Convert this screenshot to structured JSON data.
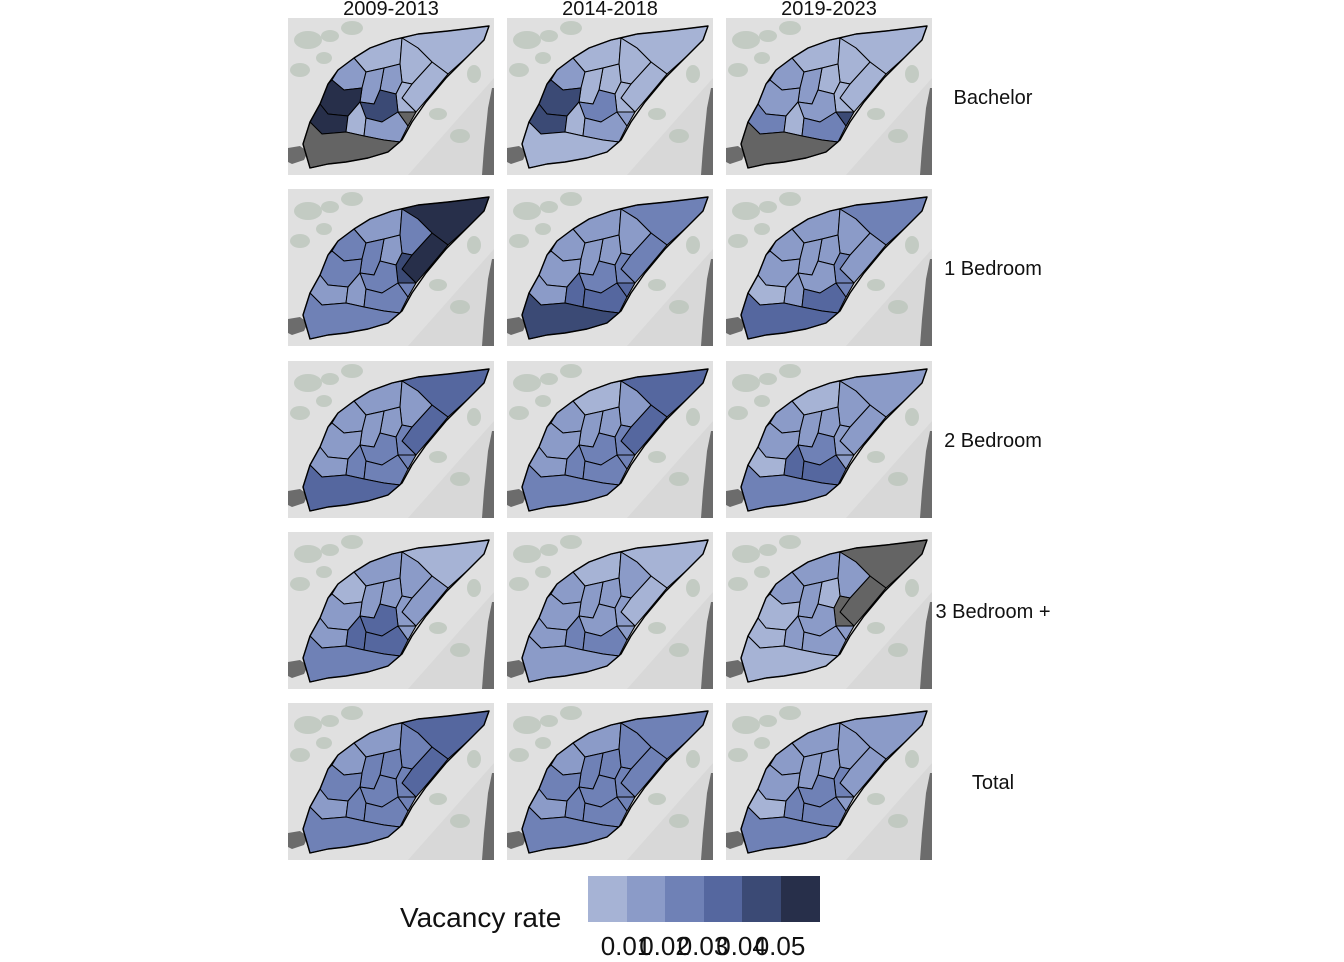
{
  "periods": [
    "2009-2013",
    "2014-2018",
    "2019-2023"
  ],
  "bedroom_types": [
    "Bachelor",
    "1 Bedroom",
    "2 Bedroom",
    "3 Bedroom +",
    "Total"
  ],
  "legend": {
    "title": "Vacancy rate",
    "ticks": [
      "0.01",
      "0.02",
      "0.03",
      "0.04",
      "0.05"
    ],
    "bins": [
      "#a6b3d5",
      "#8b9bc8",
      "#6f81b6",
      "#55679f",
      "#3b4a75",
      "#272f4a"
    ],
    "na_color": "#646464"
  },
  "colors": {
    "land": "#d8d8d8",
    "land_light": "#e6e6e6",
    "water": "#6c6c6c",
    "park": "#bcc5bc",
    "boundary": "#000000"
  },
  "maps": [
    {
      "period": "2009-2013",
      "type": "Bachelor",
      "zones": [
        0,
        0,
        0,
        0,
        1,
        1,
        0,
        1,
        5,
        5,
        4,
        0,
        1,
        6,
        6
      ]
    },
    {
      "period": "2014-2018",
      "type": "Bachelor",
      "zones": [
        0,
        0,
        0,
        0,
        0,
        1,
        0,
        0,
        4,
        4,
        2,
        0,
        1,
        0,
        1
      ]
    },
    {
      "period": "2019-2023",
      "type": "Bachelor",
      "zones": [
        0,
        0,
        0,
        0,
        0,
        1,
        0,
        1,
        1,
        2,
        1,
        0,
        2,
        6,
        4
      ]
    },
    {
      "period": "2009-2013",
      "type": "1 Bedroom",
      "zones": [
        5,
        5,
        1,
        2,
        1,
        2,
        4,
        2,
        2,
        1,
        2,
        1,
        2,
        2,
        2
      ]
    },
    {
      "period": "2014-2018",
      "type": "1 Bedroom",
      "zones": [
        2,
        2,
        1,
        1,
        1,
        1,
        2,
        1,
        1,
        1,
        2,
        3,
        3,
        4,
        3
      ]
    },
    {
      "period": "2019-2023",
      "type": "1 Bedroom",
      "zones": [
        2,
        1,
        1,
        1,
        1,
        1,
        2,
        1,
        1,
        0,
        1,
        1,
        3,
        3,
        2
      ]
    },
    {
      "period": "2009-2013",
      "type": "2 Bedroom",
      "zones": [
        3,
        3,
        1,
        1,
        1,
        1,
        2,
        1,
        1,
        1,
        2,
        2,
        2,
        3,
        2
      ]
    },
    {
      "period": "2014-2018",
      "type": "2 Bedroom",
      "zones": [
        3,
        3,
        0,
        1,
        1,
        1,
        2,
        1,
        1,
        1,
        2,
        2,
        2,
        2,
        2
      ]
    },
    {
      "period": "2019-2023",
      "type": "2 Bedroom",
      "zones": [
        1,
        1,
        0,
        1,
        1,
        1,
        1,
        1,
        1,
        0,
        2,
        3,
        3,
        2,
        1
      ]
    },
    {
      "period": "2009-2013",
      "type": "3 Bedroom +",
      "zones": [
        0,
        1,
        1,
        1,
        1,
        0,
        1,
        1,
        1,
        1,
        3,
        3,
        3,
        2,
        1
      ]
    },
    {
      "period": "2014-2018",
      "type": "3 Bedroom +",
      "zones": [
        0,
        0,
        0,
        1,
        1,
        1,
        1,
        1,
        1,
        1,
        1,
        2,
        2,
        1,
        1
      ]
    },
    {
      "period": "2019-2023",
      "type": "3 Bedroom +",
      "zones": [
        6,
        6,
        1,
        1,
        0,
        1,
        6,
        1,
        0,
        0,
        1,
        1,
        1,
        0,
        1
      ]
    },
    {
      "period": "2009-2013",
      "type": "Total",
      "zones": [
        3,
        3,
        1,
        2,
        2,
        1,
        2,
        2,
        2,
        1,
        2,
        2,
        2,
        2,
        2
      ]
    },
    {
      "period": "2014-2018",
      "type": "Total",
      "zones": [
        2,
        2,
        1,
        2,
        2,
        1,
        2,
        2,
        2,
        1,
        2,
        2,
        2,
        2,
        2
      ]
    },
    {
      "period": "2019-2023",
      "type": "Total",
      "zones": [
        1,
        1,
        1,
        1,
        1,
        1,
        2,
        1,
        1,
        0,
        2,
        2,
        2,
        2,
        1
      ]
    }
  ]
}
